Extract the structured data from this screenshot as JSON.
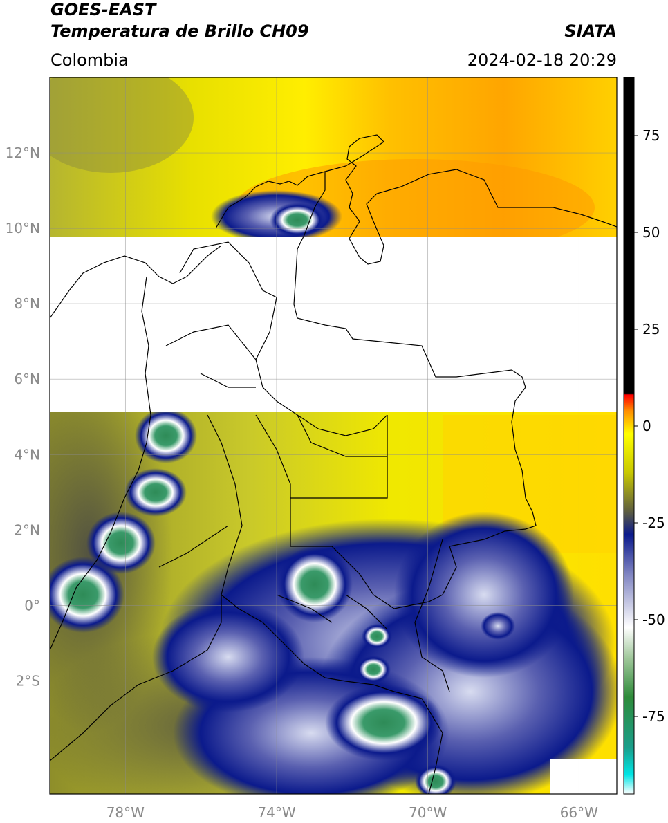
{
  "header": {
    "satellite": "GOES-EAST",
    "product": "Temperatura de Brillo CH09",
    "region": "Colombia",
    "agency": "SIATA",
    "datetime": "2024-02-18 20:29"
  },
  "map": {
    "lon_range": [
      -80,
      -65
    ],
    "lat_range": [
      -5,
      14
    ],
    "grid": true,
    "lon_ticks": [
      {
        "value": -78,
        "label": "78°W"
      },
      {
        "value": -74,
        "label": "74°W"
      },
      {
        "value": -70,
        "label": "70°W"
      },
      {
        "value": -66,
        "label": "66°W"
      }
    ],
    "lat_ticks": [
      {
        "value": 12,
        "label": "12°N"
      },
      {
        "value": 10,
        "label": "10°N"
      },
      {
        "value": 8,
        "label": "8°N"
      },
      {
        "value": 6,
        "label": "6°N"
      },
      {
        "value": 4,
        "label": "4°N"
      },
      {
        "value": 2,
        "label": "2°N"
      },
      {
        "value": 0,
        "label": "0°"
      },
      {
        "value": -2,
        "label": "2°S"
      }
    ],
    "missing_data_band_lat": [
      5.2,
      9.8
    ]
  },
  "colorbar": {
    "range": [
      -95,
      90
    ],
    "ticks": [
      {
        "value": 75,
        "label": "75"
      },
      {
        "value": 50,
        "label": "50"
      },
      {
        "value": 25,
        "label": "25"
      },
      {
        "value": 0,
        "label": "0"
      },
      {
        "value": -25,
        "label": "-25"
      },
      {
        "value": -50,
        "label": "-50"
      },
      {
        "value": -75,
        "label": "-75"
      }
    ],
    "stops": [
      {
        "value": -95,
        "color": "#ffffff"
      },
      {
        "value": -90,
        "color": "#00e5e5"
      },
      {
        "value": -83,
        "color": "#1a9e8a"
      },
      {
        "value": -70,
        "color": "#2e8b3a"
      },
      {
        "value": -60,
        "color": "#9fc79a"
      },
      {
        "value": -52,
        "color": "#ffffff"
      },
      {
        "value": -38,
        "color": "#7d82c0"
      },
      {
        "value": -28,
        "color": "#0b1a8c"
      },
      {
        "value": -22,
        "color": "#5e5e40"
      },
      {
        "value": -12,
        "color": "#c8c800"
      },
      {
        "value": -2,
        "color": "#ffff00"
      },
      {
        "value": 4,
        "color": "#ff8c00"
      },
      {
        "value": 8,
        "color": "#ff0000"
      },
      {
        "value": 8.5,
        "color": "#000000"
      },
      {
        "value": 90,
        "color": "#000000"
      }
    ]
  }
}
